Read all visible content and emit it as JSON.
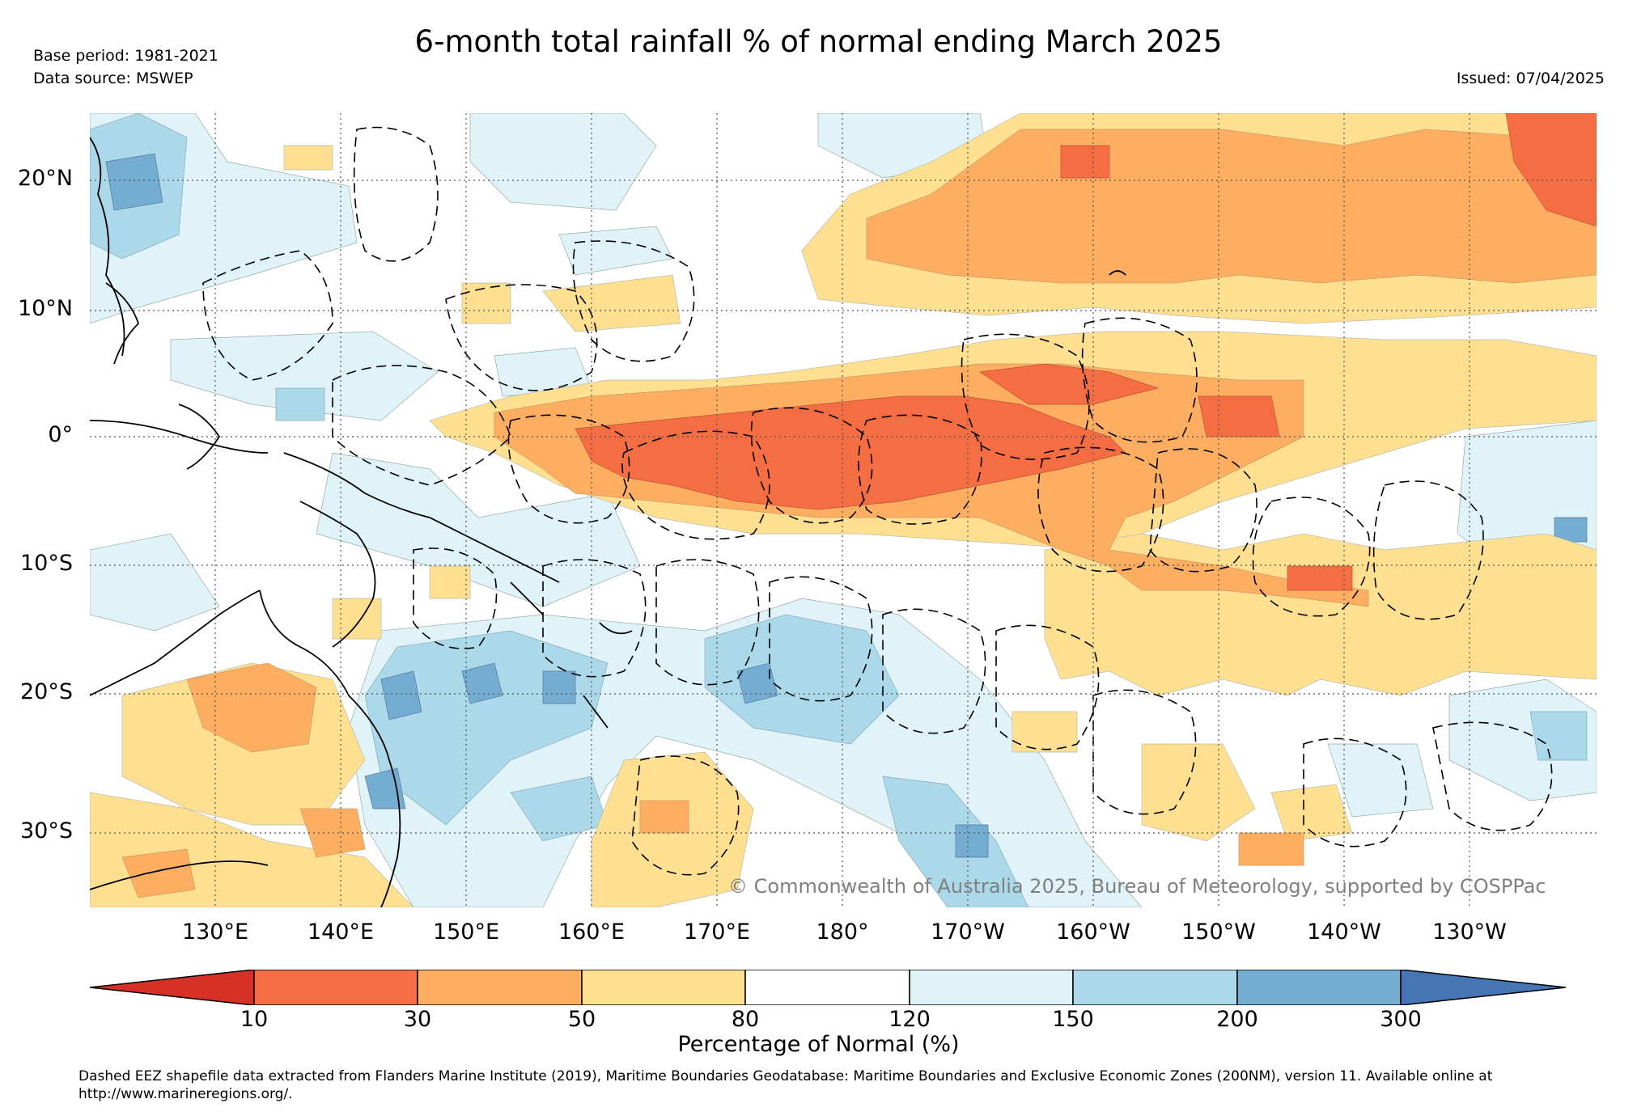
{
  "header": {
    "title": "6-month total rainfall % of normal ending March 2025",
    "base_period": "Base period: 1981-2021",
    "data_source": "Data source: MSWEP",
    "issued": "Issued: 07/04/2025"
  },
  "map": {
    "lat_labels": [
      "20°N",
      "10°N",
      "0°",
      "10°S",
      "20°S",
      "30°S"
    ],
    "lon_labels": [
      "130°E",
      "140°E",
      "150°E",
      "160°E",
      "170°E",
      "180°",
      "170°W",
      "160°W",
      "150°W",
      "140°W",
      "130°W"
    ],
    "copyright": "© Commonwealth of Australia 2025, Bureau of Meteorology, supported by COSPPac",
    "colors": {
      "lt10": "#d73027",
      "c10_30": "#f46d43",
      "c30_50": "#fdae61",
      "c50_80": "#fee090",
      "c80_120": "#ffffff",
      "c120_150": "#e0f3f8",
      "c150_200": "#abd9e9",
      "c200_300": "#74add1",
      "gt300": "#4575b4"
    }
  },
  "legend": {
    "ticks": [
      "10",
      "30",
      "50",
      "80",
      "120",
      "150",
      "200",
      "300"
    ],
    "label": "Percentage of Normal (%)"
  },
  "footnote": "Dashed EEZ shapefile data extracted from Flanders Marine Institute (2019), Maritime Boundaries Geodatabase: Maritime Boundaries and Exclusive Economic Zones (200NM), version 11. Available online at http://www.marineregions.org/."
}
